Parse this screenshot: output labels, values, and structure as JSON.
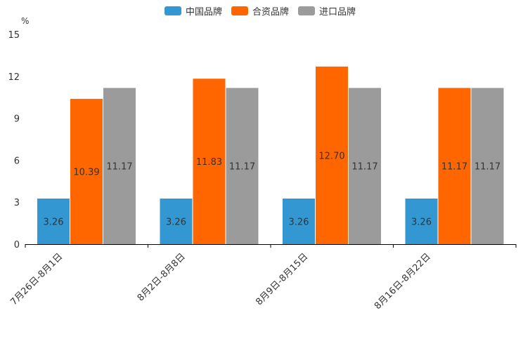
{
  "chart_data": {
    "type": "bar",
    "unit": "%",
    "categories": [
      "7月26日-8月1日",
      "8月2日-8月8日",
      "8月9日-8月15日",
      "8月16日-8月22日"
    ],
    "series": [
      {
        "name": "中国品牌",
        "color": "#3398d1",
        "values": [
          3.26,
          3.26,
          3.26,
          3.26
        ],
        "labels": [
          "3.26",
          "3.26",
          "3.26",
          "3.26"
        ]
      },
      {
        "name": "合资品牌",
        "color": "#ff6600",
        "values": [
          10.39,
          11.83,
          12.7,
          11.17
        ],
        "labels": [
          "10.39",
          "11.83",
          "12.70",
          "11.17"
        ]
      },
      {
        "name": "进口品牌",
        "color": "#9b9b9b",
        "values": [
          11.17,
          11.17,
          11.17,
          11.17
        ],
        "labels": [
          "11.17",
          "11.17",
          "11.17",
          "11.17"
        ]
      }
    ],
    "ylim": [
      0,
      15
    ],
    "yticks": [
      "0",
      "3",
      "6",
      "9",
      "12",
      "15"
    ],
    "legend_position": "top-center"
  }
}
